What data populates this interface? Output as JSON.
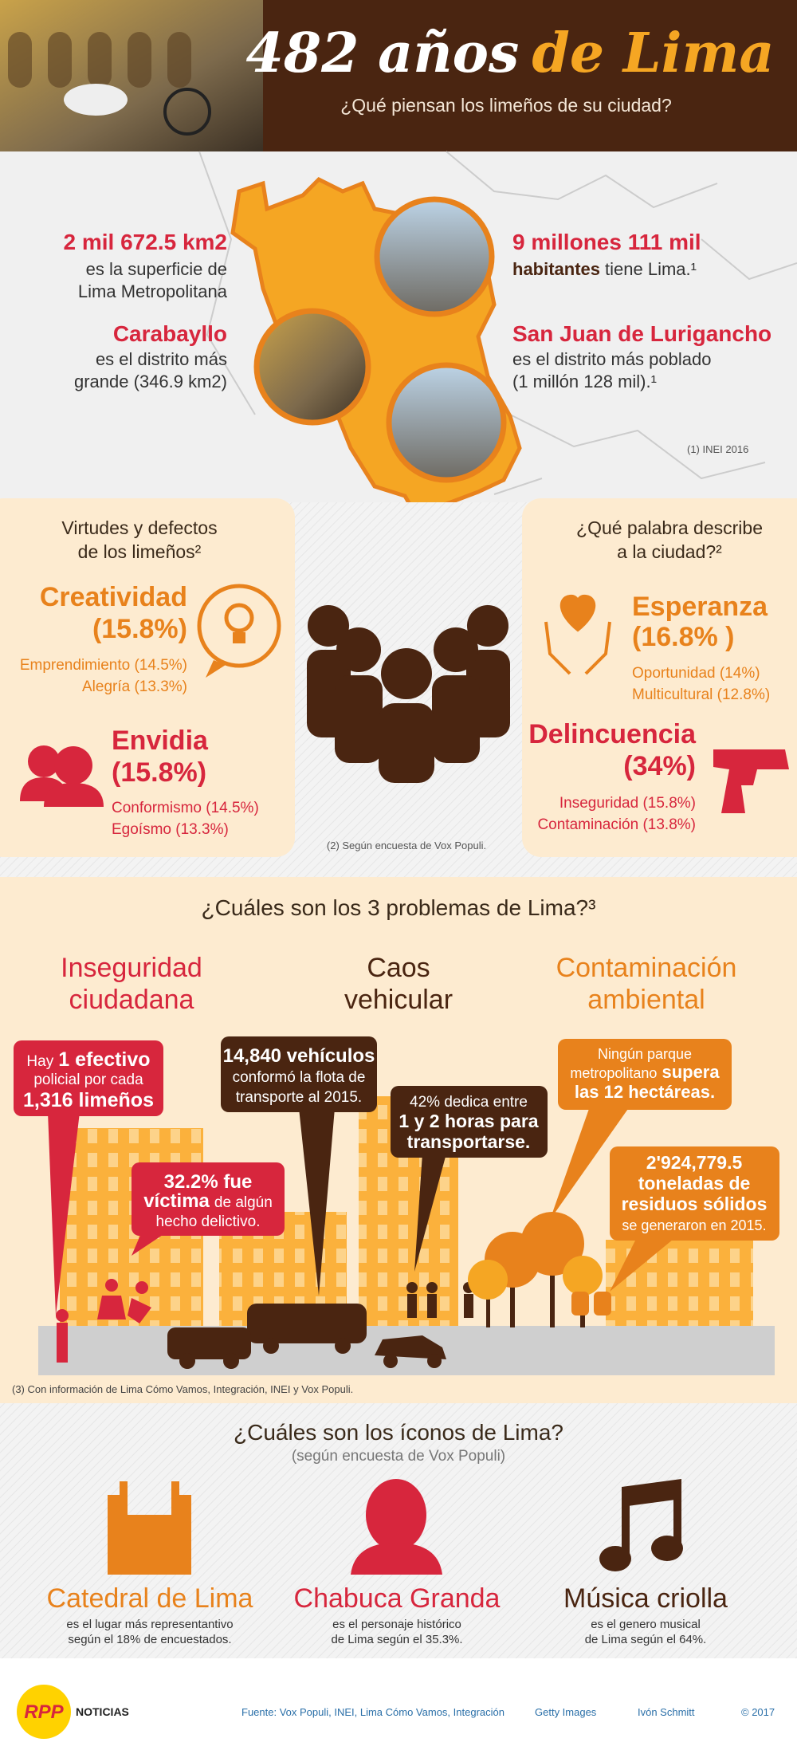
{
  "header": {
    "title_main": "482 años",
    "title_accent": "de Lima",
    "subtitle": "¿Qué piensan los limeños de su ciudad?"
  },
  "facts": {
    "area": {
      "value": "2 mil 672.5 km2",
      "lines": [
        "es la superficie de",
        "Lima Metropolitana"
      ]
    },
    "largest": {
      "name": "Carabayllo",
      "lines": [
        "es el distrito más",
        "grande (346.9 km2)"
      ]
    },
    "population": {
      "value": "9 millones 111 mil",
      "bold": "habitantes",
      "rest": "tiene Lima.¹"
    },
    "populous": {
      "name": "San Juan de Lurigancho",
      "lines": [
        "es el distrito más poblado",
        "(1 millón 128 mil).¹"
      ]
    },
    "source": "(1) INEI 2016"
  },
  "virtues": {
    "title": [
      "Virtudes y defectos",
      "de los limeños²"
    ],
    "top": {
      "name": "Creatividad",
      "pct": "(15.8%)",
      "others": [
        "Emprendimiento (14.5%)",
        "Alegría (13.3%)"
      ]
    },
    "bottom": {
      "name": "Envidia",
      "pct": "(15.8%)",
      "others": [
        "Conformismo (14.5%)",
        "Egoísmo (13.3%)"
      ]
    }
  },
  "words": {
    "title": [
      "¿Qué palabra describe",
      "a la ciudad?²"
    ],
    "top": {
      "name": "Esperanza",
      "pct": "(16.8% )",
      "others": [
        "Oportunidad (14%)",
        "Multicultural (12.8%)"
      ]
    },
    "bottom": {
      "name": "Delincuencia",
      "pct": "(34%)",
      "others": [
        "Inseguridad (15.8%)",
        "Contaminación (13.8%)"
      ]
    }
  },
  "survey_note": "(2) Según encuesta de Vox Populi.",
  "problems": {
    "title": "¿Cuáles son los 3 problemas de Lima?³",
    "headings": [
      [
        "Inseguridad",
        "ciudadana"
      ],
      [
        "Caos",
        "vehicular"
      ],
      [
        "Contaminación",
        "ambiental"
      ]
    ],
    "police": {
      "a": "Hay",
      "b": "1 efectivo",
      "c": "policial por cada",
      "d": "1,316 limeños"
    },
    "victims": {
      "a": "32.2% fue",
      "b": "víctima",
      "c": "de algún",
      "d": "hecho delictivo."
    },
    "fleet": {
      "a": "14,840 vehículos",
      "b": "conformó la flota de",
      "c": "transporte al 2015."
    },
    "commute": {
      "a": "42% dedica entre",
      "b": "1 y 2 horas para",
      "c": "transportarse."
    },
    "parks": {
      "a": "Ningún parque",
      "b": "metropolitano",
      "c": "supera",
      "d": "las 12 hectáreas."
    },
    "waste": {
      "a": "2'924,779.5",
      "b": "toneladas de",
      "c": "residuos sólidos",
      "d": "se generaron en 2015."
    },
    "note": "(3) Con información de Lima Cómo Vamos, Integración, INEI y Vox Populi."
  },
  "icons": {
    "title": "¿Cuáles son los íconos de Lima?",
    "subtitle": "(según encuesta de Vox Populi)",
    "items": [
      {
        "name": "Catedral de Lima",
        "lines": [
          "es el lugar más representantivo",
          "según el 18% de encuestados."
        ]
      },
      {
        "name": "Chabuca Granda",
        "lines": [
          "es el personaje histórico",
          "de Lima según el 35.3%."
        ]
      },
      {
        "name": "Música criolla",
        "lines": [
          "es el genero musical",
          "de Lima según el 64%."
        ]
      }
    ]
  },
  "footer": {
    "logo": "RPP",
    "brand": "NOTICIAS",
    "source": "Fuente: Vox Populi, INEI, Lima Cómo Vamos, Integración",
    "photos": "Getty Images",
    "author": "Ivón Schmitt",
    "copyright": "© 2017"
  }
}
